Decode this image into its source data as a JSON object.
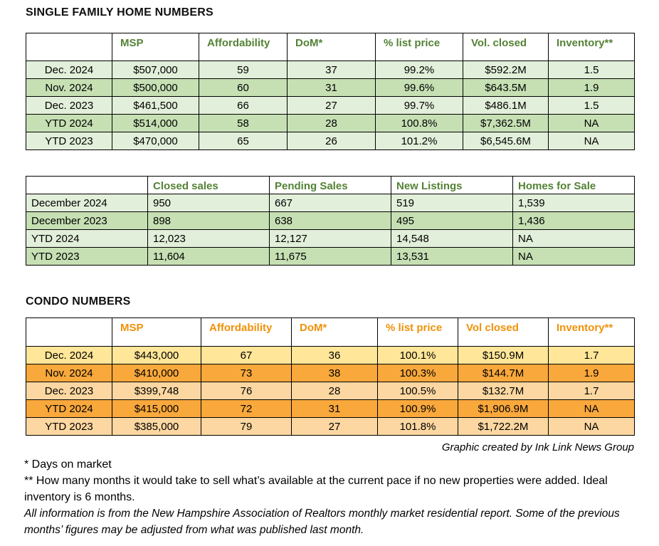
{
  "titles": {
    "family": "SINGLE FAMILY HOME NUMBERS",
    "condo": "CONDO NUMBERS"
  },
  "credit": "Graphic created by Ink Link News Group",
  "footnotes": {
    "days_on_market": "* Days on market",
    "inventory": "** How many months it would take to sell what’s available at the current pace if no new properties were added. Ideal inventory is 6 months.",
    "disclaimer": "All information is from the New Hampshire Association of Realtors monthly market residential report. Some of the previous months’ figures may be adjusted from what was published last month."
  },
  "colors": {
    "green_header_text": "#548235",
    "green_row_light": "#E2EFDA",
    "green_row_dark": "#C6E0B4",
    "orange_header_text": "#EF9209",
    "orange_row_yellow": "#FFE699",
    "orange_row_light": "#FCD7A1",
    "orange_row_dark": "#F9A83C",
    "border": "#000000"
  },
  "chart_data": [
    {
      "type": "table",
      "id": "single-family-stats",
      "title": "SINGLE FAMILY HOME NUMBERS",
      "theme": "green",
      "columns": [
        "",
        "MSP",
        "Affordability",
        "DoM*",
        "% list price",
        "Vol. closed",
        "Inventory**"
      ],
      "rows": [
        {
          "label": "Dec. 2024",
          "values": [
            "$507,000",
            "59",
            "37",
            "99.2%",
            "$592.2M",
            "1.5"
          ],
          "shade": "light"
        },
        {
          "label": "Nov. 2024",
          "values": [
            "$500,000",
            "60",
            "31",
            "99.6%",
            "$643.5M",
            "1.9"
          ],
          "shade": "dark"
        },
        {
          "label": "Dec. 2023",
          "values": [
            "$461,500",
            "66",
            "27",
            "99.7%",
            "$486.1M",
            "1.5"
          ],
          "shade": "light"
        },
        {
          "label": "YTD 2024",
          "values": [
            "$514,000",
            "58",
            "28",
            "100.8%",
            "$7,362.5M",
            "NA"
          ],
          "shade": "dark"
        },
        {
          "label": "YTD 2023",
          "values": [
            "$470,000",
            "65",
            "26",
            "101.2%",
            "$6,545.6M",
            "NA"
          ],
          "shade": "light"
        }
      ]
    },
    {
      "type": "table",
      "id": "single-family-activity",
      "title": "",
      "theme": "green",
      "columns": [
        "",
        "Closed sales",
        "Pending Sales",
        "New Listings",
        "Homes for Sale"
      ],
      "rows": [
        {
          "label": "December 2024",
          "values": [
            "950",
            "667",
            "519",
            "1,539"
          ],
          "shade": "light"
        },
        {
          "label": "December 2023",
          "values": [
            "898",
            "638",
            "495",
            "1,436"
          ],
          "shade": "dark"
        },
        {
          "label": "YTD 2024",
          "values": [
            "12,023",
            "12,127",
            "14,548",
            "NA"
          ],
          "shade": "light"
        },
        {
          "label": "YTD 2023",
          "values": [
            "11,604",
            "11,675",
            "13,531",
            "NA"
          ],
          "shade": "dark"
        }
      ]
    },
    {
      "type": "table",
      "id": "condo-stats",
      "title": "CONDO NUMBERS",
      "theme": "orange",
      "columns": [
        "",
        "MSP",
        "Affordability",
        "DoM*",
        "% list price",
        "Vol closed",
        "Inventory**"
      ],
      "rows": [
        {
          "label": "Dec. 2024",
          "values": [
            "$443,000",
            "67",
            "36",
            "100.1%",
            "$150.9M",
            "1.7"
          ],
          "shade": "yellow"
        },
        {
          "label": "Nov. 2024",
          "values": [
            "$410,000",
            "73",
            "38",
            "100.3%",
            "$144.7M",
            "1.9"
          ],
          "shade": "dark"
        },
        {
          "label": "Dec. 2023",
          "values": [
            "$399,748",
            "76",
            "28",
            "100.5%",
            "$132.7M",
            "1.7"
          ],
          "shade": "light"
        },
        {
          "label": "YTD 2024",
          "values": [
            "$415,000",
            "72",
            "31",
            "100.9%",
            "$1,906.9M",
            "NA"
          ],
          "shade": "dark"
        },
        {
          "label": "YTD 2023",
          "values": [
            "$385,000",
            "79",
            "27",
            "101.8%",
            "$1,722.2M",
            "NA"
          ],
          "shade": "light"
        }
      ]
    }
  ]
}
